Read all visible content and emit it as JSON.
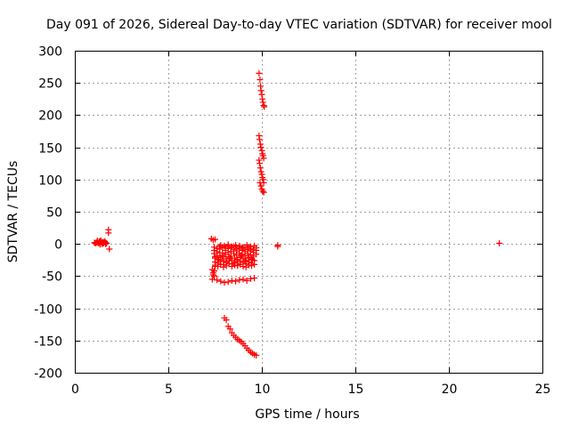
{
  "chart_data": {
    "type": "scatter",
    "title": "Day 091 of 2026, Sidereal Day-to-day VTEC variation (SDTVAR) for receiver mool",
    "xlabel": "GPS time / hours",
    "ylabel": "SDTVAR / TECUs",
    "xlim": [
      0,
      25
    ],
    "ylim": [
      -200,
      300
    ],
    "xticks": [
      0,
      5,
      10,
      15,
      20,
      25
    ],
    "yticks": [
      300,
      250,
      200,
      150,
      100,
      50,
      0,
      -50,
      -100,
      -150,
      -200
    ],
    "grid": true,
    "marker": "+",
    "series_color": "#ff0000",
    "series": [
      {
        "name": "SDTVAR",
        "x": [
          1.05,
          1.1,
          1.15,
          1.2,
          1.25,
          1.3,
          1.35,
          1.4,
          1.45,
          1.5,
          1.55,
          1.6,
          1.65,
          1.7,
          1.2,
          1.3,
          1.4,
          1.5,
          1.6,
          1.35,
          1.45,
          1.55,
          1.65,
          1.8,
          1.8,
          1.85,
          7.3,
          7.4,
          7.5,
          7.35,
          7.4,
          7.45,
          7.5,
          7.35,
          7.45,
          7.4,
          7.45,
          7.6,
          7.75,
          7.9,
          8.05,
          8.2,
          8.35,
          8.5,
          8.65,
          8.8,
          8.95,
          9.1,
          9.25,
          9.4,
          9.55,
          9.7,
          7.45,
          7.6,
          7.75,
          7.9,
          8.05,
          8.2,
          8.35,
          8.5,
          8.65,
          8.8,
          8.95,
          9.1,
          9.25,
          9.4,
          9.55,
          9.7,
          7.5,
          7.65,
          7.8,
          7.95,
          8.1,
          8.25,
          8.4,
          8.55,
          8.7,
          8.85,
          9.0,
          9.15,
          9.3,
          9.45,
          9.6,
          7.5,
          7.65,
          7.8,
          7.95,
          8.1,
          8.25,
          8.4,
          8.55,
          8.7,
          8.85,
          9.0,
          9.15,
          9.3,
          9.45,
          9.6,
          7.45,
          7.6,
          7.75,
          7.9,
          8.05,
          8.2,
          8.35,
          8.5,
          8.65,
          8.8,
          8.95,
          9.1,
          9.25,
          9.4,
          9.55,
          9.7,
          7.5,
          7.65,
          7.8,
          7.95,
          8.1,
          8.25,
          8.4,
          8.55,
          8.7,
          8.85,
          9.0,
          9.15,
          9.3,
          9.45,
          7.5,
          7.7,
          7.9,
          8.1,
          8.3,
          8.5,
          8.7,
          8.9,
          9.1,
          9.3,
          9.5,
          7.8,
          8.0,
          8.2,
          8.4,
          8.6,
          8.8,
          9.0,
          9.2,
          9.4,
          9.6,
          7.6,
          7.8,
          8.0,
          8.2,
          8.4,
          8.6,
          8.8,
          9.0,
          9.2,
          9.4,
          9.6,
          8.0,
          8.1,
          8.2,
          8.3,
          8.4,
          8.5,
          8.6,
          8.7,
          8.8,
          8.9,
          9.0,
          9.1,
          9.2,
          9.3,
          9.4,
          9.5,
          9.6,
          9.7,
          9.85,
          9.9,
          9.93,
          9.96,
          10.0,
          10.03,
          10.06,
          10.1,
          10.13,
          9.85,
          9.88,
          9.92,
          9.95,
          10.0,
          10.03,
          10.06,
          10.1,
          9.85,
          9.88,
          9.92,
          9.96,
          10.0,
          10.03,
          10.07,
          10.1,
          9.9,
          9.95,
          10.0,
          10.05,
          10.1,
          10.85,
          10.85,
          22.7
        ],
        "y": [
          2,
          1,
          2,
          3,
          1,
          2,
          4,
          3,
          2,
          1,
          2,
          3,
          2,
          1,
          5,
          4,
          5,
          3,
          4,
          -1,
          0,
          1,
          0,
          22,
          17,
          -8,
          8,
          6,
          7,
          -40,
          -45,
          -50,
          -35,
          -55,
          -42,
          -48,
          -10,
          -12,
          -8,
          -14,
          -10,
          -7,
          -12,
          -9,
          -11,
          -8,
          -10,
          -12,
          -9,
          -11,
          -13,
          -10,
          -15,
          -18,
          -14,
          -20,
          -16,
          -13,
          -19,
          -15,
          -17,
          -14,
          -16,
          -18,
          -15,
          -17,
          -19,
          -16,
          -22,
          -25,
          -21,
          -26,
          -23,
          -20,
          -25,
          -22,
          -24,
          -21,
          -23,
          -25,
          -22,
          -24,
          -26,
          -28,
          -30,
          -27,
          -32,
          -29,
          -26,
          -31,
          -28,
          -30,
          -27,
          -29,
          -31,
          -28,
          -30,
          -32,
          -5,
          -7,
          -4,
          -6,
          -5,
          -3,
          -6,
          -4,
          -7,
          -5,
          -6,
          -8,
          -5,
          -7,
          -9,
          -6,
          -33,
          -35,
          -32,
          -36,
          -34,
          -31,
          -35,
          -33,
          -34,
          -32,
          -35,
          -36,
          -33,
          -34,
          -20,
          -24,
          -18,
          -28,
          -22,
          -30,
          -26,
          -19,
          -27,
          -21,
          -25,
          -2,
          -3,
          -1,
          -4,
          -2,
          -3,
          -5,
          -2,
          -4,
          -3,
          -56,
          -58,
          -60,
          -59,
          -57,
          -58,
          -56,
          -55,
          -57,
          -54,
          -53,
          -115,
          -118,
          -128,
          -132,
          -138,
          -142,
          -145,
          -148,
          -150,
          -152,
          -155,
          -158,
          -162,
          -165,
          -168,
          -170,
          -172,
          -173,
          265,
          255,
          245,
          238,
          232,
          225,
          220,
          215,
          213,
          168,
          162,
          155,
          150,
          145,
          140,
          137,
          133,
          130,
          125,
          118,
          112,
          108,
          103,
          100,
          95,
          95,
          90,
          85,
          82,
          80,
          -2,
          -4,
          1
        ]
      }
    ]
  }
}
